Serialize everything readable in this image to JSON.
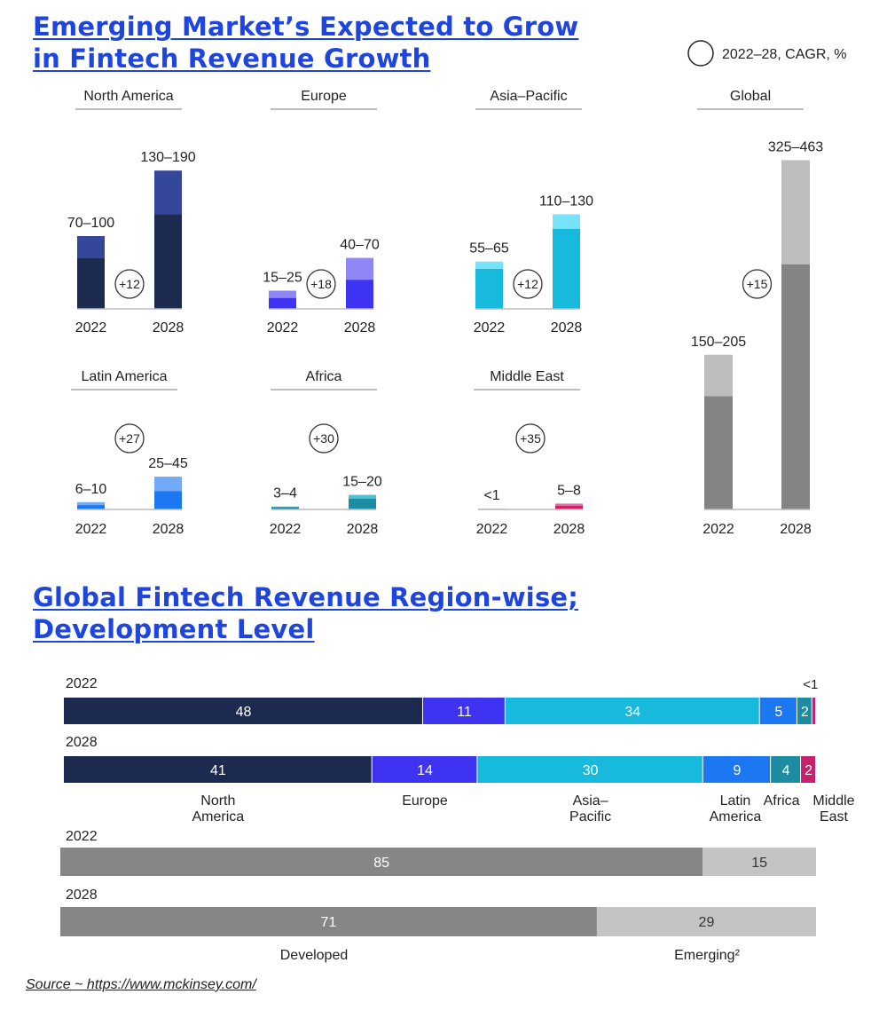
{
  "section1": {
    "title_line1": "Emerging Market’s Expected to Grow",
    "title_line2": "in Fintech Revenue Growth"
  },
  "section2": {
    "title_line1": "Global Fintech Revenue Region-wise;",
    "title_line2": "Development Level"
  },
  "legend": {
    "label": "2022–28, CAGR, %"
  },
  "source": "Source ~ https://www.mckinsey.com/",
  "chart_data": [
    {
      "type": "bar",
      "subtype": "small-multiples-range-bars",
      "unit": "revenue range",
      "regions": [
        {
          "name": "North America",
          "years": [
            "2022",
            "2028"
          ],
          "labels": [
            "70–100",
            "130–190"
          ],
          "low": [
            70,
            130
          ],
          "high": [
            100,
            190
          ],
          "cagr": "+12",
          "color_dark": "#1c2a4f",
          "color_light": "#34479b"
        },
        {
          "name": "Europe",
          "years": [
            "2022",
            "2028"
          ],
          "labels": [
            "15–25",
            "40–70"
          ],
          "low": [
            15,
            40
          ],
          "high": [
            25,
            70
          ],
          "cagr": "+18",
          "color_dark": "#3d33f0",
          "color_light": "#8f87f5"
        },
        {
          "name": "Asia–Pacific",
          "years": [
            "2022",
            "2028"
          ],
          "labels": [
            "55–65",
            "110–130"
          ],
          "low": [
            55,
            110
          ],
          "high": [
            65,
            130
          ],
          "cagr": "+12",
          "color_dark": "#17b9dd",
          "color_light": "#76e3f9"
        },
        {
          "name": "Latin America",
          "years": [
            "2022",
            "2028"
          ],
          "labels": [
            "6–10",
            "25–45"
          ],
          "low": [
            6,
            25
          ],
          "high": [
            10,
            45
          ],
          "cagr": "+27",
          "color_dark": "#1c78f2",
          "color_light": "#73aaf7"
        },
        {
          "name": "Africa",
          "years": [
            "2022",
            "2028"
          ],
          "labels": [
            "3–4",
            "15–20"
          ],
          "low": [
            3,
            15
          ],
          "high": [
            4,
            20
          ],
          "cagr": "+30",
          "color_dark": "#1b8ca1",
          "color_light": "#4fc1d3"
        },
        {
          "name": "Middle East",
          "years": [
            "2022",
            "2028"
          ],
          "labels": [
            "<1",
            "5–8"
          ],
          "low": [
            0.5,
            5
          ],
          "high": [
            1,
            8
          ],
          "cagr": "+35",
          "color_dark": "#c8216c",
          "color_light": "#e16ea1"
        },
        {
          "name": "Global",
          "years": [
            "2022",
            "2028"
          ],
          "labels": [
            "150–205",
            "325–463"
          ],
          "low": [
            150,
            325
          ],
          "high": [
            205,
            463
          ],
          "cagr": "+15",
          "color_dark": "#848484",
          "color_light": "#bdbdbd"
        }
      ]
    },
    {
      "type": "bar",
      "subtype": "stacked-horizontal-100",
      "categories": [
        "2022",
        "2028"
      ],
      "series": [
        {
          "name": "North America",
          "values": [
            48,
            41
          ],
          "labels": [
            "48",
            "41"
          ],
          "color": "#1c2a4f"
        },
        {
          "name": "Europe",
          "values": [
            11,
            14
          ],
          "labels": [
            "11",
            "14"
          ],
          "color": "#3d33f0"
        },
        {
          "name": "Asia–Pacific",
          "values": [
            34,
            30
          ],
          "labels": [
            "34",
            "30"
          ],
          "color": "#17b9dd"
        },
        {
          "name": "Latin America",
          "values": [
            5,
            9
          ],
          "labels": [
            "5",
            "9"
          ],
          "color": "#1c78f2"
        },
        {
          "name": "Africa",
          "values": [
            2,
            4
          ],
          "labels": [
            "2",
            "4"
          ],
          "color": "#1b8ca1"
        },
        {
          "name": "Middle East",
          "values": [
            0.5,
            2
          ],
          "labels": [
            "<1",
            "2"
          ],
          "color": "#c8216c"
        }
      ],
      "legend_labels": [
        {
          "line1": "North",
          "line2": "America"
        },
        {
          "line1": "Europe",
          "line2": ""
        },
        {
          "line1": "Asia–",
          "line2": "Pacific"
        },
        {
          "line1": "Latin",
          "line2": "America"
        },
        {
          "line1": "Africa",
          "line2": ""
        },
        {
          "line1": "Middle",
          "line2": "East"
        }
      ]
    },
    {
      "type": "bar",
      "subtype": "stacked-horizontal-100",
      "categories": [
        "2022",
        "2028"
      ],
      "series": [
        {
          "name": "Developed",
          "values": [
            85,
            71
          ],
          "labels": [
            "85",
            "71"
          ],
          "color": "#868686"
        },
        {
          "name": "Emerging",
          "values": [
            15,
            29
          ],
          "labels": [
            "15",
            "29"
          ],
          "color": "#c4c4c4"
        }
      ],
      "legend_labels": [
        "Developed",
        "Emerging²"
      ]
    }
  ]
}
